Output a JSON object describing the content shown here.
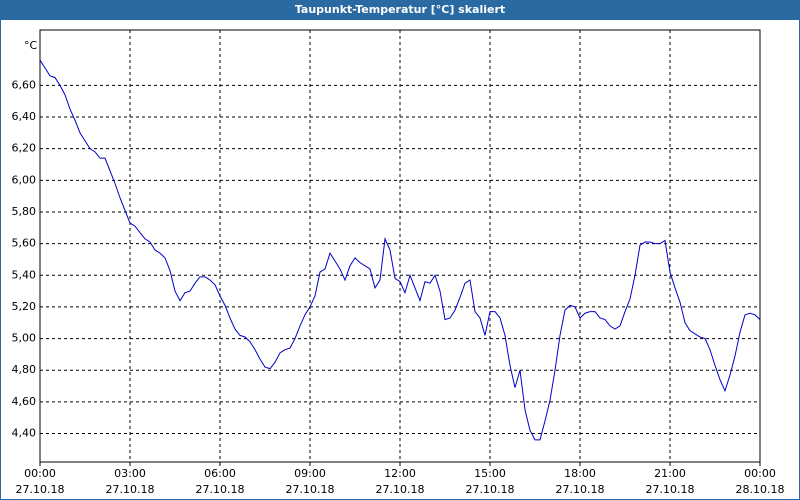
{
  "chart_data": {
    "type": "line",
    "title": "Taupunkt-Temperatur [°C] skaliert",
    "y_unit": "°C",
    "x": [
      0,
      10,
      20,
      30,
      40,
      50,
      60,
      70,
      80,
      90,
      100,
      110,
      120,
      130,
      140,
      150,
      160,
      170,
      180,
      190,
      200,
      210,
      220,
      230,
      240,
      250,
      260,
      270,
      280,
      290,
      300,
      310,
      320,
      330,
      340,
      350,
      360,
      370,
      380,
      390,
      400,
      410,
      420,
      430,
      440,
      450,
      460,
      470,
      480,
      490,
      500,
      510,
      520,
      530,
      540,
      550,
      560,
      570,
      580,
      590,
      600,
      610,
      620,
      630,
      640,
      650,
      660,
      670,
      680,
      690,
      700,
      710,
      720,
      730,
      740,
      750,
      760,
      770,
      780,
      790,
      800,
      810,
      820,
      830,
      840,
      850,
      860,
      870,
      880,
      890,
      900,
      910,
      920,
      930,
      940,
      950,
      960,
      970,
      980,
      990,
      1000,
      1010,
      1020,
      1030,
      1040,
      1050,
      1060,
      1070,
      1080,
      1090,
      1100,
      1110,
      1120,
      1130,
      1140,
      1150,
      1160,
      1170,
      1180,
      1190,
      1200,
      1210,
      1220,
      1230,
      1240,
      1250,
      1260,
      1270,
      1280,
      1290,
      1300,
      1310,
      1320,
      1330,
      1340,
      1350,
      1360,
      1370,
      1380,
      1390,
      1400,
      1410,
      1420,
      1430,
      1440
    ],
    "series": [
      {
        "color": "#0000c8",
        "values": [
          6.76,
          6.71,
          6.66,
          6.65,
          6.6,
          6.54,
          6.45,
          6.38,
          6.3,
          6.25,
          6.2,
          6.18,
          6.14,
          6.14,
          6.06,
          5.98,
          5.89,
          5.81,
          5.73,
          5.71,
          5.67,
          5.63,
          5.61,
          5.56,
          5.54,
          5.51,
          5.43,
          5.3,
          5.24,
          5.29,
          5.3,
          5.35,
          5.39,
          5.39,
          5.37,
          5.34,
          5.27,
          5.21,
          5.13,
          5.06,
          5.02,
          5.01,
          4.98,
          4.93,
          4.87,
          4.82,
          4.81,
          4.85,
          4.91,
          4.93,
          4.94,
          5.0,
          5.08,
          5.15,
          5.2,
          5.27,
          5.42,
          5.44,
          5.54,
          5.49,
          5.44,
          5.37,
          5.46,
          5.51,
          5.48,
          5.46,
          5.44,
          5.32,
          5.37,
          5.63,
          5.56,
          5.38,
          5.36,
          5.29,
          5.4,
          5.32,
          5.24,
          5.36,
          5.35,
          5.4,
          5.3,
          5.12,
          5.13,
          5.18,
          5.26,
          5.35,
          5.37,
          5.17,
          5.13,
          5.02,
          5.17,
          5.17,
          5.13,
          5.02,
          4.83,
          4.69,
          4.8,
          4.55,
          4.42,
          4.36,
          4.36,
          4.48,
          4.61,
          4.8,
          5.02,
          5.18,
          5.21,
          5.2,
          5.13,
          5.16,
          5.17,
          5.17,
          5.13,
          5.12,
          5.08,
          5.06,
          5.08,
          5.17,
          5.25,
          5.4,
          5.59,
          5.61,
          5.61,
          5.6,
          5.6,
          5.62,
          5.42,
          5.32,
          5.23,
          5.1,
          5.05,
          5.03,
          5.01,
          5.0,
          4.93,
          4.83,
          4.74,
          4.67,
          4.77,
          4.89,
          5.04,
          5.15,
          5.16,
          5.15,
          5.12
        ]
      }
    ],
    "xlim": [
      0,
      1440
    ],
    "xticks": [
      {
        "value": 0,
        "label": [
          "00:00",
          "27.10.18"
        ]
      },
      {
        "value": 180,
        "label": [
          "03:00",
          "27.10.18"
        ]
      },
      {
        "value": 360,
        "label": [
          "06:00",
          "27.10.18"
        ]
      },
      {
        "value": 540,
        "label": [
          "09:00",
          "27.10.18"
        ]
      },
      {
        "value": 720,
        "label": [
          "12:00",
          "27.10.18"
        ]
      },
      {
        "value": 900,
        "label": [
          "15:00",
          "27.10.18"
        ]
      },
      {
        "value": 1080,
        "label": [
          "18:00",
          "27.10.18"
        ]
      },
      {
        "value": 1260,
        "label": [
          "21:00",
          "27.10.18"
        ]
      },
      {
        "value": 1440,
        "label": [
          "00:00",
          "28.10.18"
        ]
      }
    ],
    "ylim": [
      4.22,
      6.95
    ],
    "yticks": [
      {
        "value": 4.4,
        "label": "4,40"
      },
      {
        "value": 4.6,
        "label": "4,60"
      },
      {
        "value": 4.8,
        "label": "4,80"
      },
      {
        "value": 5.0,
        "label": "5,00"
      },
      {
        "value": 5.2,
        "label": "5,20"
      },
      {
        "value": 5.4,
        "label": "5,40"
      },
      {
        "value": 5.6,
        "label": "5,60"
      },
      {
        "value": 5.8,
        "label": "5,80"
      },
      {
        "value": 6.0,
        "label": "6,00"
      },
      {
        "value": 6.2,
        "label": "6,20"
      },
      {
        "value": 6.4,
        "label": "6,40"
      },
      {
        "value": 6.6,
        "label": "6,60"
      }
    ],
    "grid": true
  }
}
